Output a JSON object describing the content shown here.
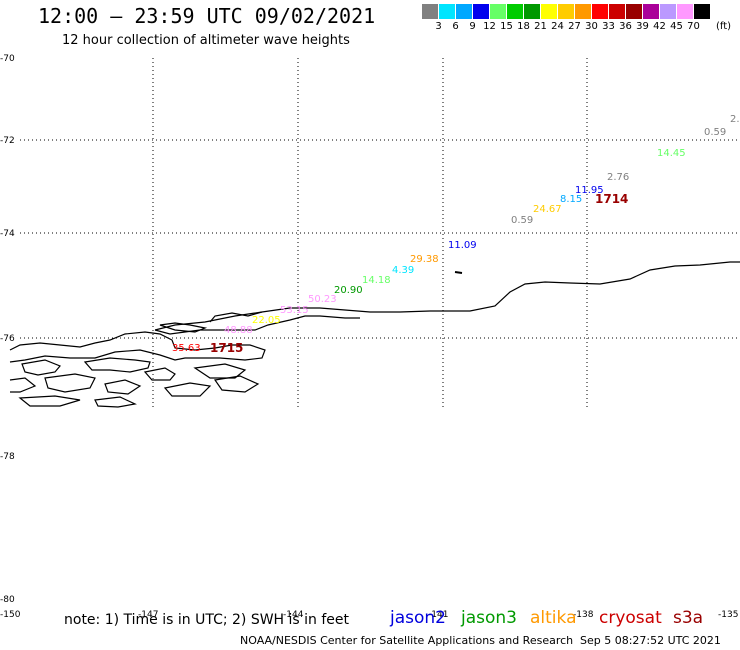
{
  "header": {
    "title": "12:00 – 23:59 UTC 09/02/2021",
    "subtitle": "12 hour collection of altimeter wave heights"
  },
  "color_scale": {
    "unit": "(ft)",
    "bins": [
      {
        "label": "3",
        "color": "#808080"
      },
      {
        "label": "6",
        "color": "#00e5ff"
      },
      {
        "label": "9",
        "color": "#00a8ff"
      },
      {
        "label": "12",
        "color": "#0000ee"
      },
      {
        "label": "15",
        "color": "#66ff66"
      },
      {
        "label": "18",
        "color": "#00cc00"
      },
      {
        "label": "21",
        "color": "#009900"
      },
      {
        "label": "24",
        "color": "#ffff00"
      },
      {
        "label": "27",
        "color": "#ffcc00"
      },
      {
        "label": "30",
        "color": "#ff9900"
      },
      {
        "label": "33",
        "color": "#ff0000"
      },
      {
        "label": "36",
        "color": "#cc0000"
      },
      {
        "label": "39",
        "color": "#990000"
      },
      {
        "label": "42",
        "color": "#aa0099"
      },
      {
        "label": "45",
        "color": "#bb99ff"
      },
      {
        "label": "70",
        "color": "#ff99ff"
      },
      {
        "label": "",
        "color": "#000000"
      }
    ]
  },
  "axes": {
    "lat_labels": [
      "-70",
      "-72",
      "-74",
      "-76",
      "-78",
      "-80"
    ],
    "lon_labels": [
      "-150",
      "-147",
      "-144",
      "-141",
      "-138",
      "-135"
    ]
  },
  "observations": [
    {
      "text": "2.",
      "color": "#808080"
    },
    {
      "text": "0.59",
      "color": "#808080"
    },
    {
      "text": "14.45",
      "color": "#66ff66"
    },
    {
      "text": "2.76",
      "color": "#808080"
    },
    {
      "text": "11.95",
      "color": "#0000ee"
    },
    {
      "text": "1714",
      "color": "#990000"
    },
    {
      "text": "8.15",
      "color": "#00a8ff"
    },
    {
      "text": "24.67",
      "color": "#ffcc00"
    },
    {
      "text": "0.59",
      "color": "#808080"
    },
    {
      "text": "11.09",
      "color": "#0000ee"
    },
    {
      "text": "29.38",
      "color": "#ff9900"
    },
    {
      "text": "4.39",
      "color": "#00e5ff"
    },
    {
      "text": "14.18",
      "color": "#66ff66"
    },
    {
      "text": "20.90",
      "color": "#009900"
    },
    {
      "text": "50.23",
      "color": "#ff99ff"
    },
    {
      "text": "53.15",
      "color": "#ff99ff"
    },
    {
      "text": "22.05",
      "color": "#ffff00"
    },
    {
      "text": "48.88",
      "color": "#ff99ff"
    },
    {
      "text": "35.63",
      "color": "#ff0000"
    },
    {
      "text": "1715",
      "color": "#990000"
    }
  ],
  "footer": {
    "note": "note: 1) Time is in UTC; 2) SWH is in feet",
    "credit": "NOAA/NESDIS Center for Satellite Applications and Research",
    "timestamp": "Sep  5 08:27:52 UTC 2021",
    "missions": [
      {
        "name": "jason2",
        "color": "#0000dd"
      },
      {
        "name": "jason3",
        "color": "#009900"
      },
      {
        "name": "altika",
        "color": "#ff9900"
      },
      {
        "name": "cryosat",
        "color": "#cc0000"
      },
      {
        "name": "s3a",
        "color": "#990000"
      }
    ]
  }
}
